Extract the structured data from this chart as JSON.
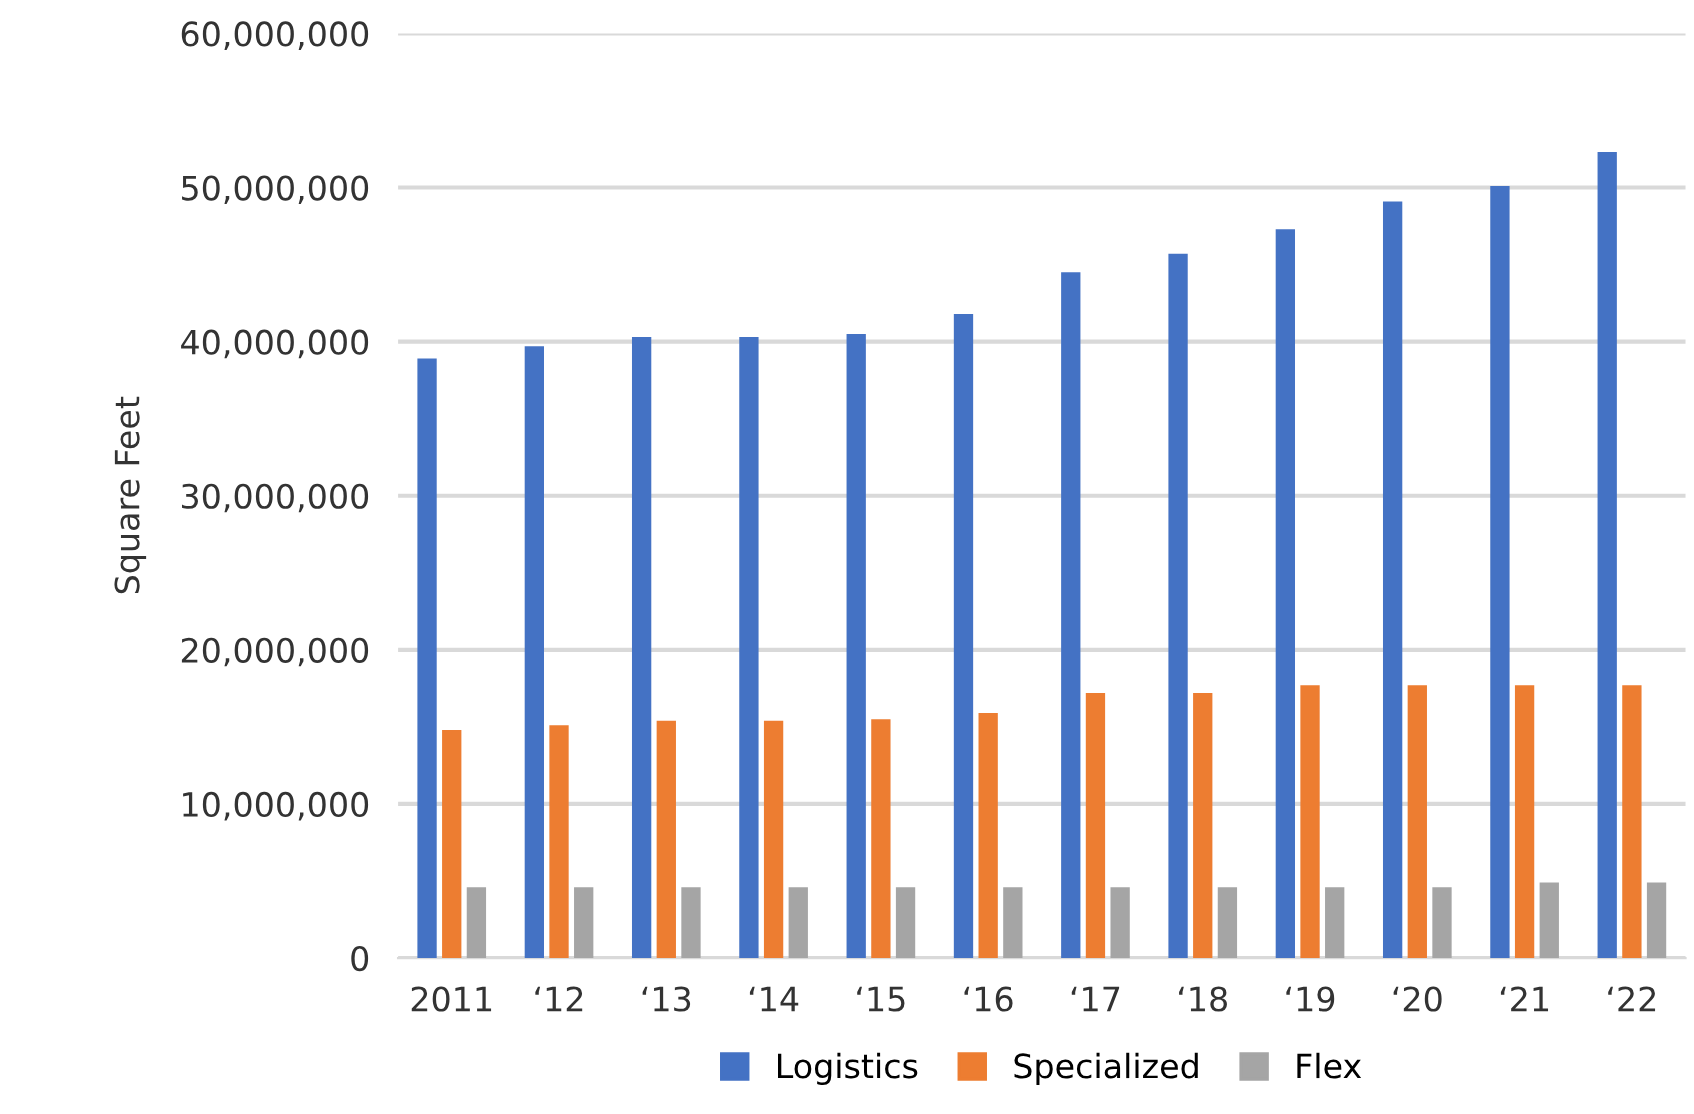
{
  "chart_data": {
    "type": "bar",
    "ylabel": "Square Feet",
    "categories": [
      "2011",
      "‘12",
      "‘13",
      "‘14",
      "‘15",
      "‘16",
      "‘17",
      "‘18",
      "‘19",
      "‘20",
      "‘21",
      "‘22"
    ],
    "series": [
      {
        "name": "Logistics",
        "color": "#4472c4",
        "values": [
          38900000,
          39700000,
          40300000,
          40300000,
          40500000,
          41800000,
          44500000,
          45700000,
          47300000,
          49100000,
          50100000,
          52300000
        ]
      },
      {
        "name": "Specialized",
        "color": "#ed7d31",
        "values": [
          14800000,
          15100000,
          15400000,
          15400000,
          15500000,
          15900000,
          17200000,
          17200000,
          17700000,
          17700000,
          17700000,
          17700000
        ]
      },
      {
        "name": "Flex",
        "color": "#a5a5a5",
        "values": [
          4600000,
          4600000,
          4600000,
          4600000,
          4600000,
          4600000,
          4600000,
          4600000,
          4600000,
          4600000,
          4900000,
          4900000
        ]
      }
    ],
    "ylim": [
      0,
      60000000
    ],
    "yticks": [
      {
        "value": 0,
        "label": "0"
      },
      {
        "value": 10000000,
        "label": "10,000,000"
      },
      {
        "value": 20000000,
        "label": "20,000,000"
      },
      {
        "value": 30000000,
        "label": "30,000,000"
      },
      {
        "value": 40000000,
        "label": "40,000,000"
      },
      {
        "value": 50000000,
        "label": "50,000,000"
      },
      {
        "value": 60000000,
        "label": "60,000,000"
      }
    ],
    "grid": "y",
    "legend": "bottom"
  }
}
